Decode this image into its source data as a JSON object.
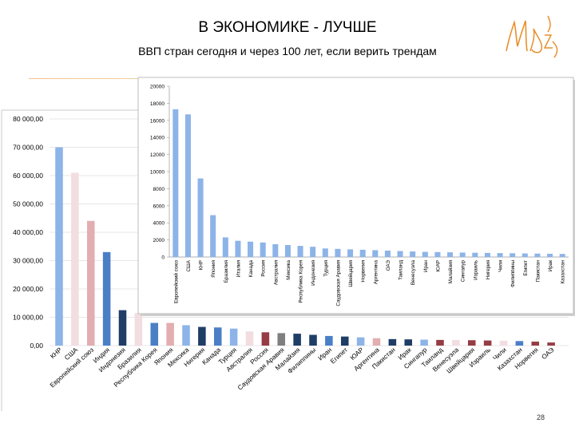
{
  "slide": {
    "title": "В ЭКОНОМИКЕ - ЛУЧШЕ",
    "subtitle": "ВВП стран сегодня и через 100 лет, если верить трендам",
    "page_number": "28",
    "logo_text": "Mbz"
  },
  "chart_data": [
    {
      "type": "bar",
      "title": "",
      "xlabel": "",
      "ylabel": "",
      "ylim": [
        0,
        80000
      ],
      "grid": true,
      "legend": "none",
      "yticks": [
        "0,00",
        "10 000,00",
        "20 000,00",
        "30 000,00",
        "40 000,00",
        "50 000,00",
        "60 000,00",
        "70 000,00",
        "80 000,00"
      ],
      "categories": [
        "КНР",
        "США",
        "Европейский союз",
        "Индия",
        "Индонезия",
        "Бразилия",
        "Республика Корея",
        "Япония",
        "Мексика",
        "Нигерия",
        "Канада",
        "Турция",
        "Австралия",
        "Россия",
        "Саудовская Аравия",
        "Малайзия",
        "Филиппины",
        "Иран",
        "Египет",
        "ЮАР",
        "Аргентина",
        "Пакистан",
        "Ирак",
        "Сингапур",
        "Таиланд",
        "Венесуэла",
        "Швейцария",
        "Израиль",
        "Чили",
        "Казахстан",
        "Норвегия",
        "ОАЭ"
      ],
      "values": [
        70000,
        61000,
        44000,
        33000,
        12500,
        11500,
        8000,
        8000,
        7200,
        6600,
        6400,
        6000,
        5000,
        4700,
        4400,
        4200,
        3800,
        3400,
        3200,
        2900,
        2600,
        2300,
        2200,
        2100,
        2000,
        2000,
        1900,
        1800,
        1700,
        1600,
        1400,
        1100
      ],
      "colors": [
        "#8db4e8",
        "#f2dde0",
        "#e2aeb0",
        "#4a7fc6",
        "#1f3e66",
        "#f2dde0",
        "#4a7fc6",
        "#e2aeb0",
        "#8db4e8",
        "#1f3e66",
        "#4a7fc6",
        "#8db4e8",
        "#f2dde0",
        "#953d43",
        "#7f7f7f",
        "#1f3e66",
        "#1f3e66",
        "#4a7fc6",
        "#1f3e66",
        "#8db4e8",
        "#e2aeb0",
        "#1f3e66",
        "#1f3e66",
        "#8db4e8",
        "#953d43",
        "#f2dde0",
        "#953d43",
        "#953d43",
        "#f2dde0",
        "#4a7fc6",
        "#953d43",
        "#953d43"
      ]
    },
    {
      "type": "bar",
      "title": "",
      "xlabel": "",
      "ylabel": "",
      "ylim": [
        0,
        20000
      ],
      "grid": false,
      "legend": "none",
      "yticks": [
        "0",
        "2000",
        "4000",
        "6000",
        "8000",
        "10000",
        "12000",
        "14000",
        "16000",
        "18000",
        "20000"
      ],
      "categories": [
        "Европейский союз",
        "США",
        "КНР",
        "Япония",
        "Бразилия",
        "Италия",
        "Канада",
        "Россия",
        "Австралия",
        "Мексика",
        "Республика Корея",
        "Индонезия",
        "Турция",
        "Саудовская Аравия",
        "Швейцария",
        "Норвегия",
        "Аргентина",
        "ОАЭ",
        "Таиланд",
        "Венесуэла",
        "Иран",
        "ЮАР",
        "Малайзия",
        "Сингапур",
        "Израиль",
        "Нигерия",
        "Чили",
        "Филиппины",
        "Египет",
        "Пакистан",
        "Ирак",
        "Казахстан"
      ],
      "values": [
        17300,
        16700,
        9200,
        4900,
        2300,
        1900,
        1800,
        1700,
        1500,
        1400,
        1300,
        1200,
        1000,
        950,
        900,
        850,
        800,
        750,
        700,
        650,
        600,
        580,
        550,
        520,
        500,
        480,
        460,
        440,
        420,
        400,
        380,
        360
      ],
      "color": "#8db4e8"
    }
  ]
}
